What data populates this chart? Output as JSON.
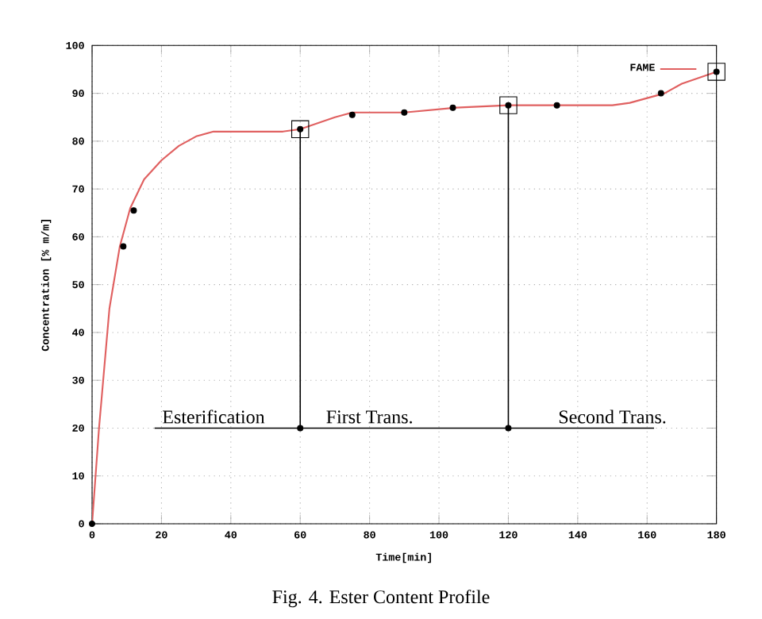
{
  "chart_data": {
    "type": "line",
    "xlabel": "Time[min]",
    "ylabel": "Concentration [% m/m]",
    "xlim": [
      0,
      180
    ],
    "ylim": [
      0,
      100
    ],
    "xticks": [
      0,
      20,
      40,
      60,
      80,
      100,
      120,
      140,
      160,
      180
    ],
    "yticks": [
      0,
      10,
      20,
      30,
      40,
      50,
      60,
      70,
      80,
      90,
      100
    ],
    "grid": true,
    "legend": "top right",
    "series": [
      {
        "name": "FAME",
        "color": "#e06060",
        "x": [
          0,
          2,
          5,
          8,
          11,
          15,
          20,
          25,
          30,
          35,
          45,
          55,
          60,
          70,
          75,
          90,
          105,
          120,
          150,
          155,
          165,
          170,
          180
        ],
        "values": [
          0,
          20,
          45,
          58,
          66,
          72,
          76,
          79,
          81,
          82,
          82,
          82,
          82.5,
          85,
          86,
          86,
          87,
          87.5,
          87.5,
          88,
          90,
          92,
          94.5
        ]
      },
      {
        "type": "scatter",
        "marker": "circle",
        "color": "#000000",
        "x": [
          0,
          9,
          12,
          60,
          75,
          90,
          104,
          120,
          134,
          164,
          180,
          60,
          120
        ],
        "values": [
          0,
          58,
          65.5,
          82.5,
          85.5,
          86,
          87,
          87.5,
          87.5,
          90,
          94.5,
          20,
          20
        ]
      },
      {
        "type": "scatter",
        "marker": "square",
        "color": "#000000",
        "x": [
          60,
          120,
          180
        ],
        "values": [
          82.5,
          87.5,
          94.5
        ]
      },
      {
        "color": "#000000",
        "x": [
          60,
          60
        ],
        "values": [
          82.5,
          20
        ]
      },
      {
        "color": "#000000",
        "x": [
          120,
          120
        ],
        "values": [
          87.5,
          20
        ]
      },
      {
        "color": "#000000",
        "x": [
          18,
          162
        ],
        "values": [
          20,
          20
        ]
      }
    ],
    "annotations": [
      {
        "text": "Esterification",
        "x": 35,
        "y": 20
      },
      {
        "text": "First Trans.",
        "x": 80,
        "y": 20
      },
      {
        "text": "Second Trans.",
        "x": 150,
        "y": 20
      },
      "Fig. 4. Ester Content Profile"
    ]
  }
}
